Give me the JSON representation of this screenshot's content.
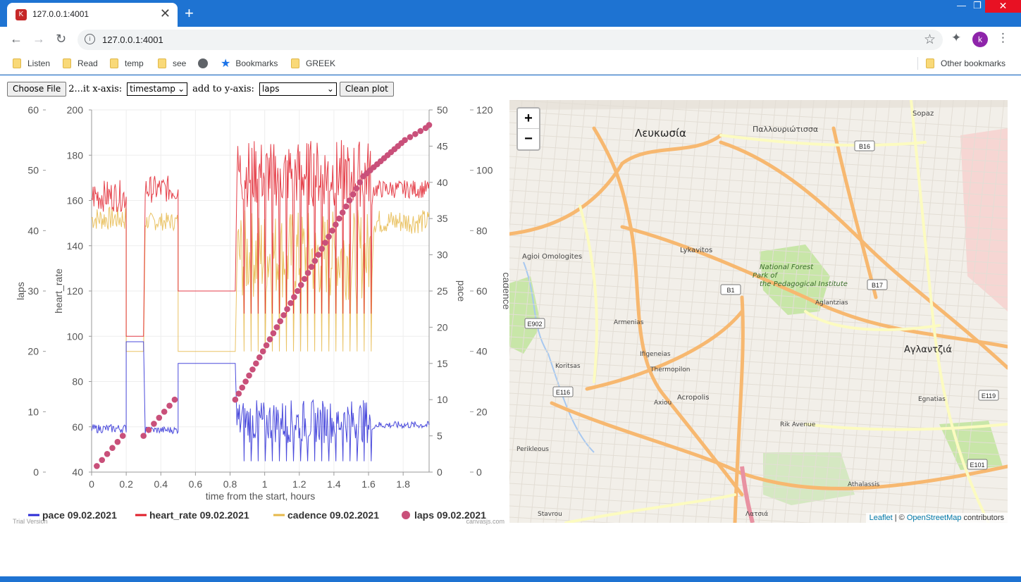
{
  "browser": {
    "tab_title": "127.0.0.1:4001",
    "url": "127.0.0.1:4001",
    "new_tab": "+",
    "avatar_letter": "k",
    "favicon_letter": "K",
    "bookmarks": [
      {
        "label": "Listen",
        "icon": "folder-icon"
      },
      {
        "label": "Read",
        "icon": "folder-icon"
      },
      {
        "label": "temp",
        "icon": "folder-icon"
      },
      {
        "label": "see",
        "icon": "folder-icon"
      },
      {
        "label": "",
        "icon": "globe-icon"
      },
      {
        "label": "Bookmarks",
        "icon": "star-icon"
      },
      {
        "label": "GREEK",
        "icon": "folder-icon"
      }
    ],
    "other_bookmarks": "Other bookmarks"
  },
  "controls": {
    "choose_file": "Choose File",
    "file_label": "2...it x-axis:",
    "x_axis_value": "timestamp",
    "add_label": "add to y-axis:",
    "y_axis_value": "laps",
    "clean_plot": "Clean plot"
  },
  "chart_data": {
    "type": "line",
    "xlabel": "time from the start, hours",
    "x_ticks": [
      "0",
      "0.2",
      "0.4",
      "0.6",
      "0.8",
      "1",
      "1.2",
      "1.4",
      "1.6",
      "1.8"
    ],
    "xlim": [
      0,
      1.95
    ],
    "axes": [
      {
        "label": "laps",
        "ticks": [
          "0",
          "10",
          "20",
          "30",
          "40",
          "50",
          "60"
        ],
        "ylim": [
          0,
          60
        ]
      },
      {
        "label": "heart_rate",
        "ticks": [
          "40",
          "60",
          "80",
          "100",
          "120",
          "140",
          "160",
          "180",
          "200"
        ],
        "ylim": [
          40,
          200
        ]
      },
      {
        "label": "pace",
        "ticks": [
          "0",
          "5",
          "10",
          "15",
          "20",
          "25",
          "30",
          "35",
          "40",
          "45",
          "50"
        ],
        "ylim": [
          0,
          50
        ]
      },
      {
        "label": "cadence",
        "ticks": [
          "0",
          "20",
          "40",
          "60",
          "80",
          "100",
          "120"
        ],
        "ylim": [
          0,
          120
        ]
      }
    ],
    "series": [
      {
        "name": "pace 09.02.2021",
        "color": "#2b2bd6",
        "axis": "pace"
      },
      {
        "name": "heart_rate 09.02.2021",
        "color": "#e01e2a",
        "axis": "heart_rate"
      },
      {
        "name": "cadence 09.02.2021",
        "color": "#e6b84a",
        "axis": "cadence"
      },
      {
        "name": "laps 09.02.2021",
        "color": "#c9507a",
        "axis": "laps"
      }
    ],
    "laps_points": {
      "x": [
        0.03,
        0.06,
        0.09,
        0.12,
        0.15,
        0.18,
        0.3,
        0.33,
        0.36,
        0.39,
        0.42,
        0.45,
        0.48,
        0.83,
        0.85,
        0.87,
        0.89,
        0.91,
        0.93,
        0.95,
        0.97,
        0.99,
        1.01,
        1.03,
        1.05,
        1.07,
        1.09,
        1.11,
        1.13,
        1.15,
        1.17,
        1.19,
        1.21,
        1.23,
        1.25,
        1.27,
        1.29,
        1.31,
        1.33,
        1.35,
        1.37,
        1.39,
        1.41,
        1.43,
        1.45,
        1.47,
        1.49,
        1.51,
        1.53,
        1.55,
        1.57,
        1.59,
        1.61,
        1.63,
        1.65,
        1.67,
        1.69,
        1.71,
        1.73,
        1.75,
        1.77,
        1.79,
        1.81,
        1.84,
        1.87,
        1.9,
        1.93,
        1.95
      ],
      "y": [
        1,
        2,
        3,
        4,
        5,
        6,
        6,
        7,
        8,
        9,
        10,
        11,
        12,
        12,
        13,
        14,
        15,
        16,
        17,
        18,
        19,
        20,
        21,
        22,
        23,
        24,
        25,
        26,
        27,
        28,
        29,
        30,
        31,
        32,
        33,
        34,
        35,
        36,
        37,
        38,
        39,
        40,
        41,
        42,
        43,
        44,
        45,
        46,
        47,
        48,
        49,
        49.5,
        50,
        50.5,
        51,
        51.5,
        52,
        52.5,
        53,
        53.5,
        54,
        54.5,
        55,
        55.5,
        56,
        56.5,
        57,
        57.5
      ]
    },
    "watermark_left": "Trial Version",
    "watermark_right": "canvasjs.com"
  },
  "map": {
    "zoom_in": "+",
    "zoom_out": "−",
    "labels": [
      {
        "text": "Λευκωσία",
        "size": 15
      },
      {
        "text": "Παλλουριώτισσα",
        "size": 11
      },
      {
        "text": "Sopaz",
        "size": 10
      },
      {
        "text": "Agioi Omologites",
        "size": 10
      },
      {
        "text": "Lykavitos",
        "size": 10
      },
      {
        "text": "National Forest Park of the Pedagogical Institute",
        "size": 10
      },
      {
        "text": "Αγλαντζιά",
        "size": 13
      },
      {
        "text": "Acropolis",
        "size": 10
      },
      {
        "text": "Rik Avenue",
        "size": 9
      },
      {
        "text": "Egnatias",
        "size": 9
      },
      {
        "text": "Athalassis",
        "size": 9
      },
      {
        "text": "Armenias",
        "size": 9
      },
      {
        "text": "Aglantzias",
        "size": 9
      },
      {
        "text": "Koritsas",
        "size": 9
      },
      {
        "text": "Thermopilon",
        "size": 9
      },
      {
        "text": "Perikleous",
        "size": 9
      },
      {
        "text": "Stavrou",
        "size": 9
      },
      {
        "text": "Ifigeneias",
        "size": 9
      },
      {
        "text": "Axiou",
        "size": 9
      },
      {
        "text": "Λατσιά",
        "size": 9
      }
    ],
    "shields": [
      "B16",
      "B1",
      "B17",
      "E902",
      "E116",
      "E119",
      "E101"
    ],
    "attribution_leaflet": "Leaflet",
    "attribution_sep": " | © ",
    "attribution_osm": "OpenStreetMap",
    "attribution_tail": " contributors"
  }
}
